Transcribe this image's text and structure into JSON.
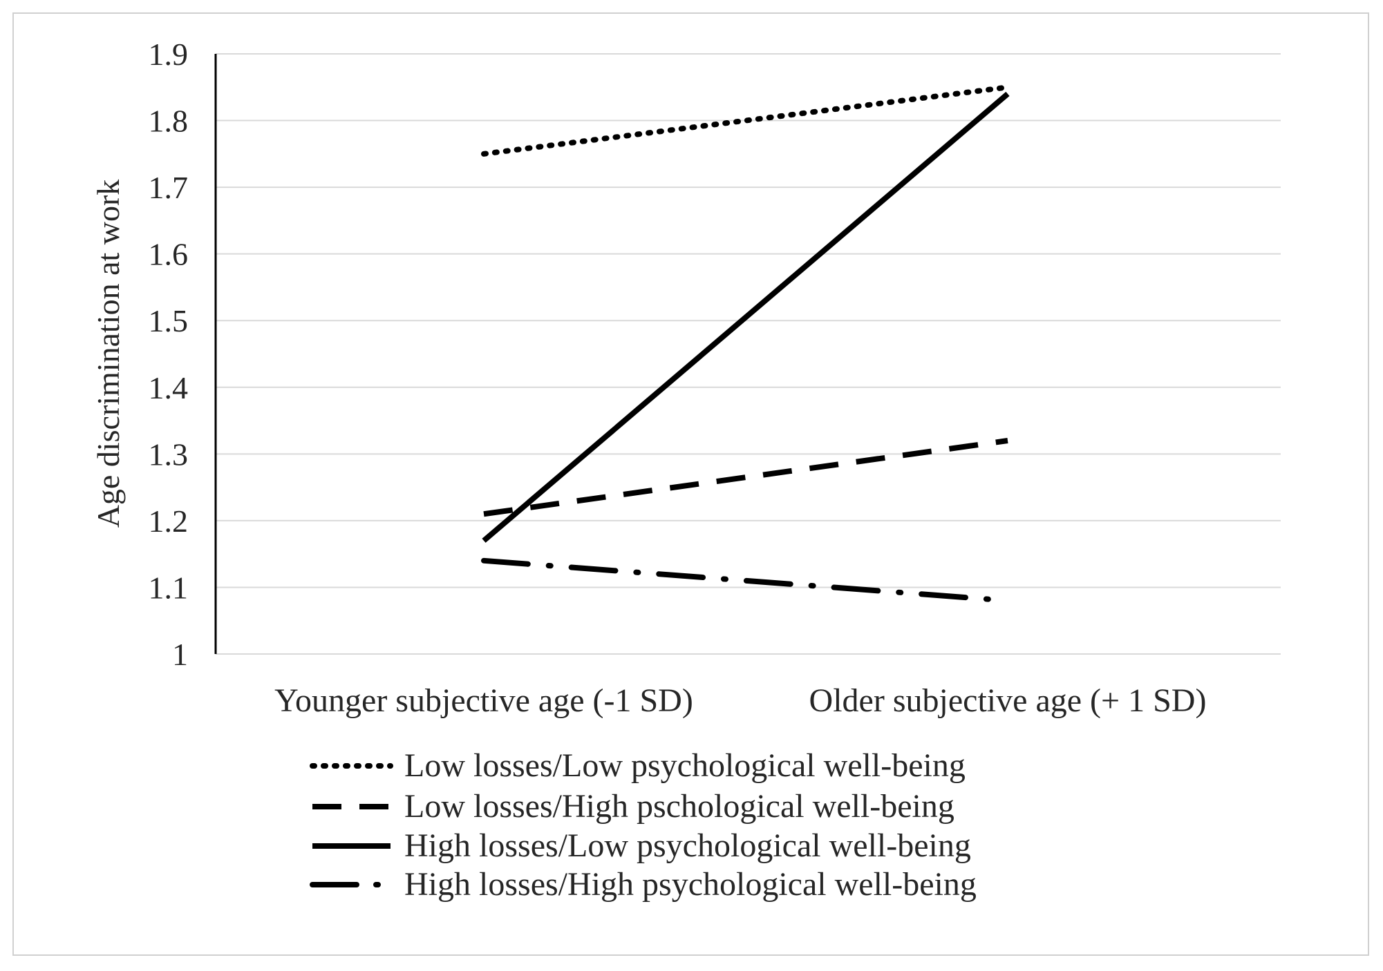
{
  "chart_data": {
    "type": "line",
    "title": "",
    "xlabel": "",
    "ylabel": "Age discrimination at work",
    "categories": [
      "Younger subjective age (-1 SD)",
      "Older subjective age (+ 1 SD)"
    ],
    "yticks": [
      "1",
      "1.1",
      "1.2",
      "1.3",
      "1.4",
      "1.5",
      "1.6",
      "1.7",
      "1.8",
      "1.9"
    ],
    "ylim": [
      1,
      1.9
    ],
    "grid": true,
    "legend_position": "bottom",
    "series": [
      {
        "name": "Low losses/Low psychological well-being",
        "values": [
          1.75,
          1.85
        ],
        "style": "dotted",
        "color": "#000000"
      },
      {
        "name": "Low losses/High pschological well-being",
        "values": [
          1.21,
          1.32
        ],
        "style": "dashed",
        "color": "#000000"
      },
      {
        "name": "High losses/Low psychological well-being",
        "values": [
          1.17,
          1.84
        ],
        "style": "solid",
        "color": "#000000"
      },
      {
        "name": "High losses/High psychological well-being",
        "values": [
          1.14,
          1.08
        ],
        "style": "long-dash-dot",
        "color": "#000000"
      }
    ],
    "colors": {
      "grid": "#d9d9d9",
      "axis": "#000000",
      "text": "#262626",
      "frame": "#d0d0d0"
    }
  }
}
